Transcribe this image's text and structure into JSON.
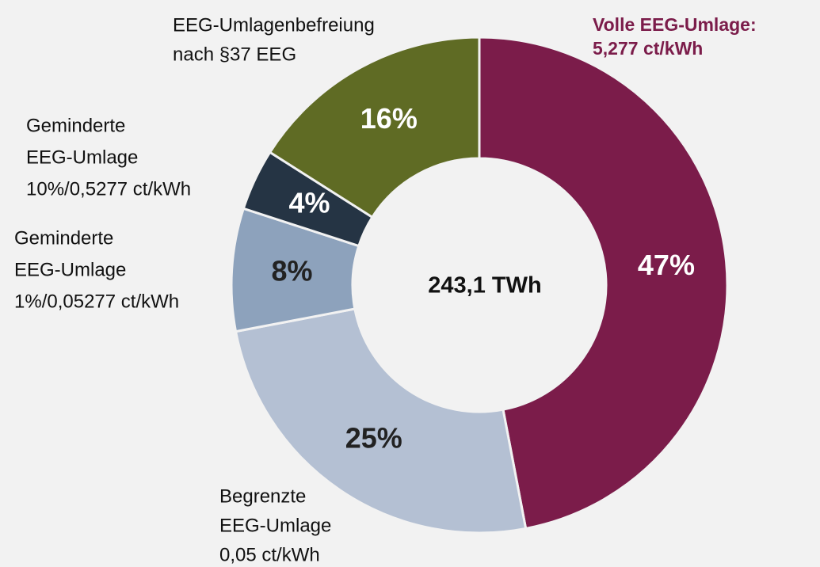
{
  "chart_data": {
    "type": "donut",
    "center_label": "243,1 TWh",
    "categories": [
      [
        "Volle EEG-Umlage:",
        "5,277 ct/kWh"
      ],
      [
        "Begrenzte",
        "EEG-Umlage",
        "0,05 ct/kWh"
      ],
      [
        "Geminderte",
        "EEG-Umlage",
        "1%/0,05277 ct/kWh"
      ],
      [
        "Geminderte",
        "EEG-Umlage",
        "10%/0,5277 ct/kWh"
      ],
      [
        "EEG-Umlagenbefreiung",
        "nach §37 EEG"
      ]
    ],
    "values": [
      47,
      25,
      8,
      4,
      16
    ],
    "value_labels": [
      "47%",
      "25%",
      "8%",
      "4%",
      "16%"
    ],
    "colors": [
      "#7b1c4a",
      "#b4c0d3",
      "#8da2bc",
      "#253444",
      "#5f6b24"
    ],
    "value_label_colors": [
      "#ffffff",
      "#222222",
      "#222222",
      "#ffffff",
      "#ffffff"
    ]
  }
}
